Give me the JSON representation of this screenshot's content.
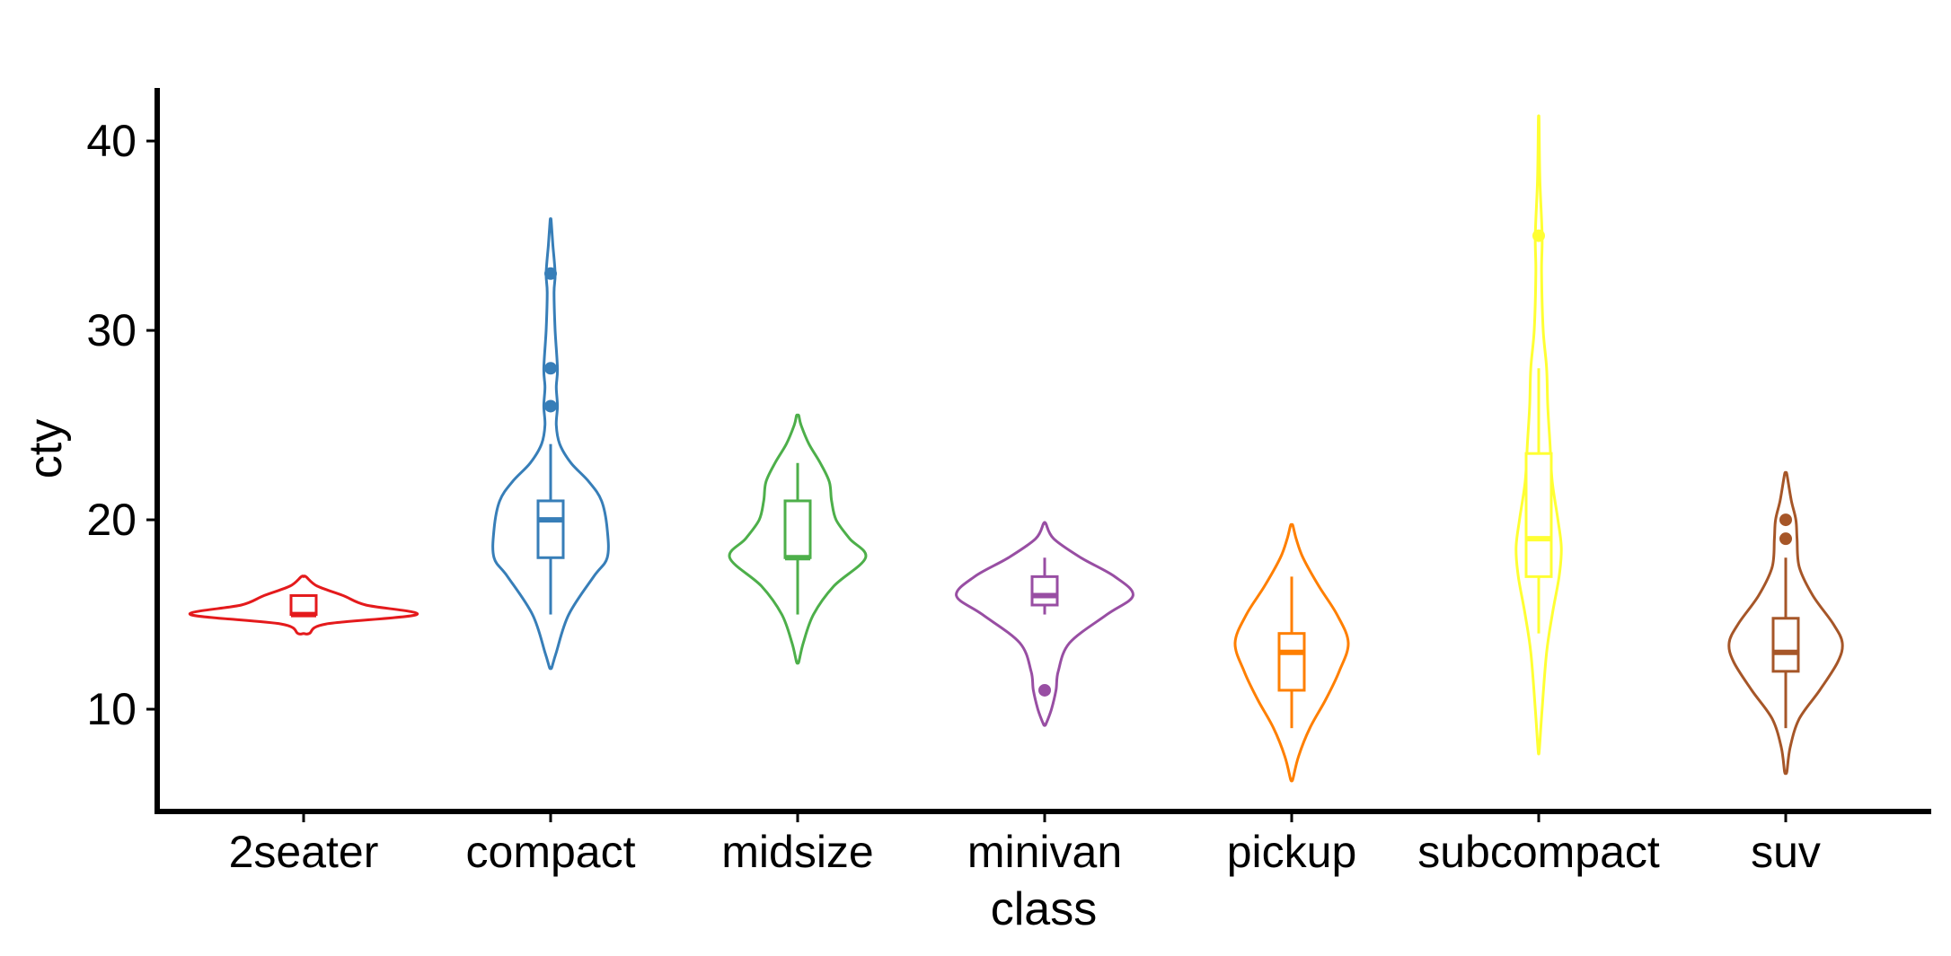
{
  "chart_data": {
    "type": "violin",
    "title": "",
    "xlabel": "class",
    "ylabel": "cty",
    "ylim": [
      4.6,
      42.8
    ],
    "yticks": [
      10,
      20,
      30,
      40
    ],
    "grid": false,
    "legend": "none",
    "categories": [
      "2seater",
      "compact",
      "midsize",
      "minivan",
      "pickup",
      "subcompact",
      "suv"
    ],
    "series": [
      {
        "category": "2seater",
        "color": "#E41A1C",
        "range": [
          14,
          17
        ],
        "density": [
          [
            14,
            0.05
          ],
          [
            14.5,
            0.2
          ],
          [
            15,
            1.0
          ],
          [
            15.5,
            0.55
          ],
          [
            16,
            0.35
          ],
          [
            16.5,
            0.12
          ],
          [
            17,
            0.02
          ]
        ],
        "box": {
          "min": 15,
          "q1": 15,
          "median": 15,
          "q3": 16,
          "max": 16
        },
        "outliers": []
      },
      {
        "category": "compact",
        "color": "#377EB8",
        "range": [
          12.2,
          35.8
        ],
        "density": [
          [
            12.2,
            0.01
          ],
          [
            13,
            0.05
          ],
          [
            15,
            0.16
          ],
          [
            17,
            0.38
          ],
          [
            18,
            0.5
          ],
          [
            19.5,
            0.5
          ],
          [
            21,
            0.45
          ],
          [
            22,
            0.34
          ],
          [
            23,
            0.18
          ],
          [
            24,
            0.08
          ],
          [
            25,
            0.05
          ],
          [
            26,
            0.06
          ],
          [
            27,
            0.05
          ],
          [
            28,
            0.06
          ],
          [
            30,
            0.04
          ],
          [
            32,
            0.03
          ],
          [
            33,
            0.04
          ],
          [
            34.5,
            0.02
          ],
          [
            35.8,
            0.005
          ]
        ],
        "box": {
          "min": 15,
          "q1": 18,
          "median": 20,
          "q3": 21,
          "max": 24
        },
        "outliers": [
          26,
          28,
          33
        ]
      },
      {
        "category": "midsize",
        "color": "#4DAF4A",
        "range": [
          12.5,
          25.5
        ],
        "density": [
          [
            12.5,
            0.01
          ],
          [
            13.5,
            0.05
          ],
          [
            15,
            0.14
          ],
          [
            16.5,
            0.32
          ],
          [
            18,
            0.6
          ],
          [
            19,
            0.46
          ],
          [
            20,
            0.34
          ],
          [
            21,
            0.3
          ],
          [
            22,
            0.28
          ],
          [
            23,
            0.2
          ],
          [
            24,
            0.1
          ],
          [
            25,
            0.03
          ],
          [
            25.5,
            0.01
          ]
        ],
        "box": {
          "min": 15,
          "q1": 18,
          "median": 18,
          "q3": 21,
          "max": 23
        },
        "outliers": []
      },
      {
        "category": "minivan",
        "color": "#984EA3",
        "range": [
          9.2,
          19.8
        ],
        "density": [
          [
            9.2,
            0.01
          ],
          [
            10,
            0.06
          ],
          [
            11,
            0.1
          ],
          [
            12,
            0.12
          ],
          [
            13.5,
            0.22
          ],
          [
            15,
            0.55
          ],
          [
            16,
            0.78
          ],
          [
            17,
            0.62
          ],
          [
            18,
            0.32
          ],
          [
            19,
            0.08
          ],
          [
            19.8,
            0.01
          ]
        ],
        "box": {
          "min": 15,
          "q1": 15.5,
          "median": 16,
          "q3": 17,
          "max": 18
        },
        "outliers": [
          11
        ]
      },
      {
        "category": "pickup",
        "color": "#FF7F00",
        "range": [
          6.3,
          19.7
        ],
        "density": [
          [
            6.3,
            0.01
          ],
          [
            7.5,
            0.06
          ],
          [
            9,
            0.16
          ],
          [
            10.5,
            0.3
          ],
          [
            12,
            0.42
          ],
          [
            13.5,
            0.5
          ],
          [
            15,
            0.4
          ],
          [
            16.5,
            0.24
          ],
          [
            18,
            0.1
          ],
          [
            19,
            0.04
          ],
          [
            19.7,
            0.01
          ]
        ],
        "box": {
          "min": 9,
          "q1": 11,
          "median": 13,
          "q3": 14,
          "max": 17
        },
        "outliers": []
      },
      {
        "category": "subcompact",
        "color": "#FFFF33",
        "range": [
          7.8,
          41.1
        ],
        "density": [
          [
            7.8,
            0.005
          ],
          [
            10,
            0.03
          ],
          [
            13,
            0.07
          ],
          [
            15,
            0.12
          ],
          [
            17,
            0.18
          ],
          [
            18.5,
            0.2
          ],
          [
            20,
            0.17
          ],
          [
            22,
            0.12
          ],
          [
            24,
            0.1
          ],
          [
            26,
            0.08
          ],
          [
            28,
            0.07
          ],
          [
            30,
            0.04
          ],
          [
            33,
            0.025
          ],
          [
            35,
            0.03
          ],
          [
            38,
            0.01
          ],
          [
            41.1,
            0.003
          ]
        ],
        "box": {
          "min": 14,
          "q1": 17,
          "median": 19,
          "q3": 23.5,
          "max": 28
        },
        "outliers": [
          35
        ]
      },
      {
        "category": "suv",
        "color": "#A65628",
        "range": [
          6.7,
          22.4
        ],
        "density": [
          [
            6.7,
            0.01
          ],
          [
            8,
            0.04
          ],
          [
            9.5,
            0.12
          ],
          [
            11,
            0.3
          ],
          [
            12.5,
            0.46
          ],
          [
            13.5,
            0.5
          ],
          [
            14.5,
            0.42
          ],
          [
            16,
            0.24
          ],
          [
            17.5,
            0.12
          ],
          [
            19,
            0.1
          ],
          [
            20,
            0.09
          ],
          [
            21,
            0.05
          ],
          [
            22.4,
            0.01
          ]
        ],
        "box": {
          "min": 9,
          "q1": 12,
          "median": 13,
          "q3": 14.8,
          "max": 18
        },
        "outliers": [
          19,
          20
        ]
      }
    ]
  }
}
